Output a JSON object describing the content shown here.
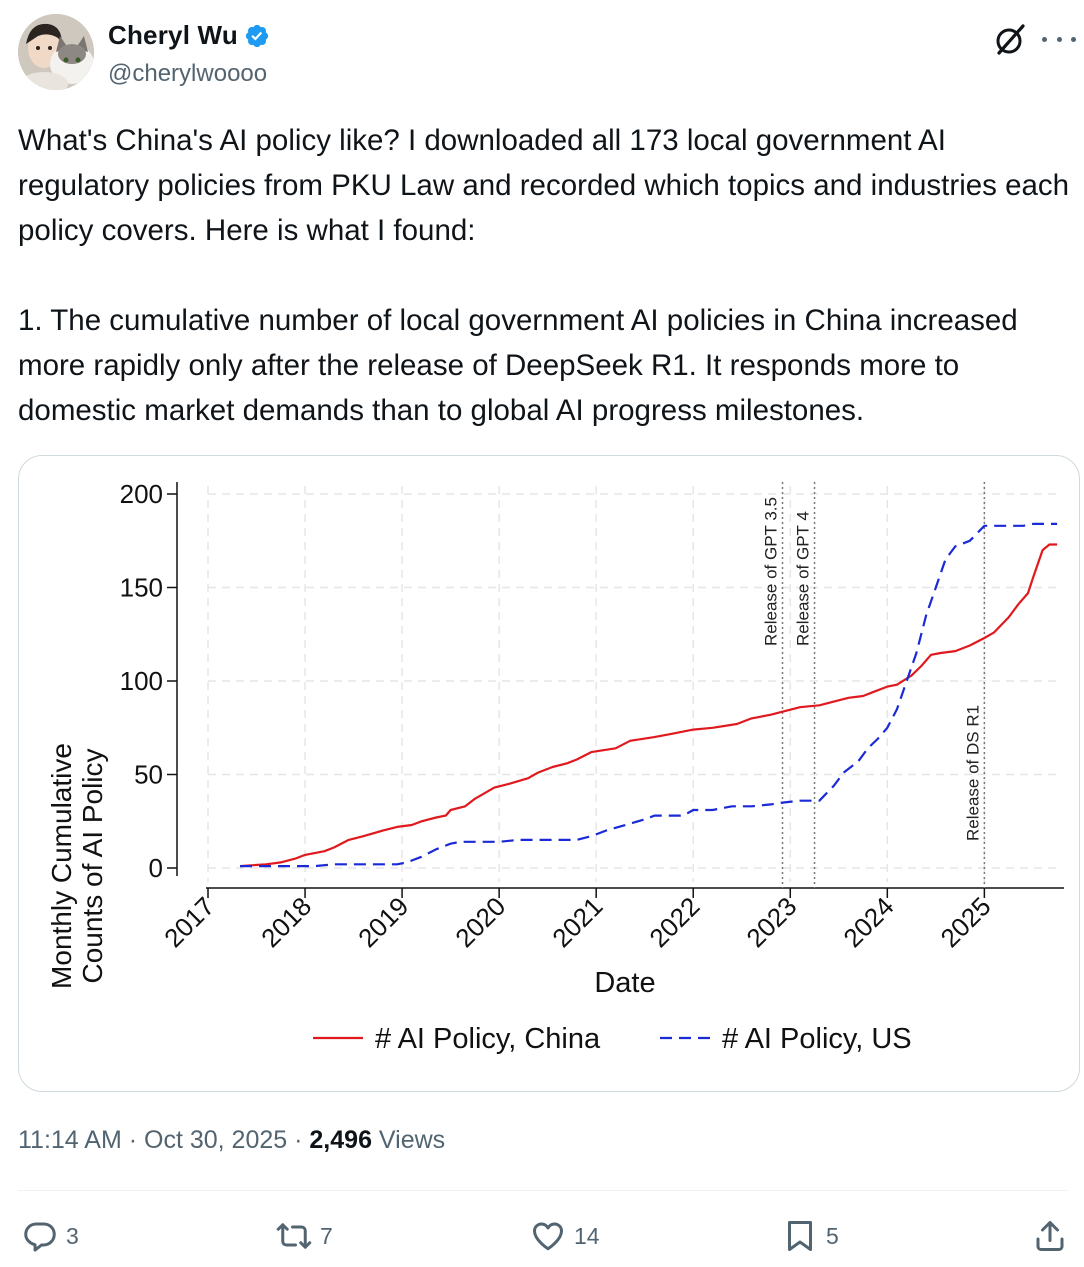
{
  "author": {
    "name": "Cheryl Wu",
    "handle": "@cherylwoooo",
    "verified": true,
    "avatar_icon": "avatar-photo-woman-with-cat",
    "verified_icon": "verified-badge-icon",
    "accent_color": "#1d9bf0"
  },
  "post": {
    "paragraph1": "What's China's AI policy like? I downloaded all 173 local government AI regulatory policies from PKU Law and recorded which topics and industries each policy covers. Here is what I found:",
    "paragraph2": "1. The cumulative number of local government AI policies in China increased more rapidly only after the release of DeepSeek R1. It responds more to domestic market demands than to global AI progress milestones."
  },
  "meta": {
    "time": "11:14 AM",
    "date": "Oct 30, 2025",
    "views_count": "2,496",
    "views_label": "Views",
    "separator": "·"
  },
  "actions": {
    "replies": "3",
    "reposts": "7",
    "likes": "14",
    "bookmarks": "5"
  },
  "chart_data": {
    "type": "line",
    "xlabel": "Date",
    "ylabel_line1": "Monthly Cumulative",
    "ylabel_line2": "Counts of AI Policy",
    "xlim": [
      2017,
      2025.8
    ],
    "ylim": [
      0,
      200
    ],
    "x_ticks": [
      "2017",
      "2018",
      "2019",
      "2020",
      "2021",
      "2022",
      "2023",
      "2024",
      "2025"
    ],
    "y_ticks": [
      "0",
      "50",
      "100",
      "150",
      "200"
    ],
    "grid": true,
    "legend_position": "bottom",
    "annotations": [
      {
        "x": 2022.92,
        "label": "Release of GPT 3.5"
      },
      {
        "x": 2023.25,
        "label": "Release of GPT 4"
      },
      {
        "x": 2025.0,
        "label": "Release of DS R1"
      }
    ],
    "series": [
      {
        "name": "# AI Policy, China",
        "color": "#e0191e",
        "dash": false,
        "points": [
          [
            2017.33,
            1
          ],
          [
            2017.6,
            2
          ],
          [
            2017.75,
            3
          ],
          [
            2017.9,
            5
          ],
          [
            2018.0,
            7
          ],
          [
            2018.2,
            9
          ],
          [
            2018.3,
            11
          ],
          [
            2018.45,
            15
          ],
          [
            2018.6,
            17
          ],
          [
            2018.8,
            20
          ],
          [
            2018.95,
            22
          ],
          [
            2019.1,
            23
          ],
          [
            2019.2,
            25
          ],
          [
            2019.35,
            27
          ],
          [
            2019.45,
            28
          ],
          [
            2019.5,
            31
          ],
          [
            2019.65,
            33
          ],
          [
            2019.75,
            37
          ],
          [
            2019.85,
            40
          ],
          [
            2019.95,
            43
          ],
          [
            2020.1,
            45
          ],
          [
            2020.3,
            48
          ],
          [
            2020.4,
            51
          ],
          [
            2020.55,
            54
          ],
          [
            2020.7,
            56
          ],
          [
            2020.8,
            58
          ],
          [
            2020.95,
            62
          ],
          [
            2021.2,
            64
          ],
          [
            2021.35,
            68
          ],
          [
            2021.6,
            70
          ],
          [
            2021.8,
            72
          ],
          [
            2022.0,
            74
          ],
          [
            2022.2,
            75
          ],
          [
            2022.45,
            77
          ],
          [
            2022.6,
            80
          ],
          [
            2022.8,
            82
          ],
          [
            2022.95,
            84
          ],
          [
            2023.1,
            86
          ],
          [
            2023.3,
            87
          ],
          [
            2023.45,
            89
          ],
          [
            2023.6,
            91
          ],
          [
            2023.75,
            92
          ],
          [
            2023.85,
            94
          ],
          [
            2024.0,
            97
          ],
          [
            2024.1,
            98
          ],
          [
            2024.25,
            103
          ],
          [
            2024.35,
            108
          ],
          [
            2024.45,
            114
          ],
          [
            2024.55,
            115
          ],
          [
            2024.7,
            116
          ],
          [
            2024.85,
            119
          ],
          [
            2025.0,
            123
          ],
          [
            2025.1,
            126
          ],
          [
            2025.25,
            134
          ],
          [
            2025.35,
            141
          ],
          [
            2025.45,
            147
          ],
          [
            2025.5,
            155
          ],
          [
            2025.6,
            170
          ],
          [
            2025.67,
            173
          ],
          [
            2025.75,
            173
          ]
        ]
      },
      {
        "name": "# AI Policy, US",
        "color": "#1a2ad6",
        "dash": true,
        "points": [
          [
            2017.33,
            1
          ],
          [
            2017.6,
            1
          ],
          [
            2017.8,
            1
          ],
          [
            2018.1,
            1
          ],
          [
            2018.3,
            2
          ],
          [
            2018.6,
            2
          ],
          [
            2018.95,
            2
          ],
          [
            2019.05,
            3
          ],
          [
            2019.2,
            6
          ],
          [
            2019.35,
            10
          ],
          [
            2019.5,
            13
          ],
          [
            2019.6,
            14
          ],
          [
            2019.8,
            14
          ],
          [
            2020.0,
            14
          ],
          [
            2020.2,
            15
          ],
          [
            2020.5,
            15
          ],
          [
            2020.8,
            15
          ],
          [
            2020.95,
            17
          ],
          [
            2021.1,
            20
          ],
          [
            2021.3,
            23
          ],
          [
            2021.5,
            26
          ],
          [
            2021.6,
            28
          ],
          [
            2021.9,
            28
          ],
          [
            2022.0,
            31
          ],
          [
            2022.2,
            31
          ],
          [
            2022.4,
            33
          ],
          [
            2022.6,
            33
          ],
          [
            2022.8,
            34
          ],
          [
            2022.92,
            35
          ],
          [
            2023.1,
            36
          ],
          [
            2023.3,
            36
          ],
          [
            2023.45,
            44
          ],
          [
            2023.55,
            51
          ],
          [
            2023.7,
            57
          ],
          [
            2023.8,
            64
          ],
          [
            2023.9,
            69
          ],
          [
            2024.0,
            75
          ],
          [
            2024.1,
            85
          ],
          [
            2024.2,
            100
          ],
          [
            2024.3,
            115
          ],
          [
            2024.4,
            135
          ],
          [
            2024.5,
            150
          ],
          [
            2024.6,
            165
          ],
          [
            2024.7,
            172
          ],
          [
            2024.85,
            175
          ],
          [
            2025.0,
            183
          ],
          [
            2025.2,
            183
          ],
          [
            2025.4,
            183
          ],
          [
            2025.5,
            184
          ],
          [
            2025.75,
            184
          ]
        ]
      }
    ]
  },
  "icons": {
    "grok": "grok-icon",
    "more": "more-options-icon",
    "reply": "reply-icon",
    "repost": "repost-icon",
    "like": "heart-icon",
    "bookmark": "bookmark-icon",
    "share": "share-icon"
  }
}
